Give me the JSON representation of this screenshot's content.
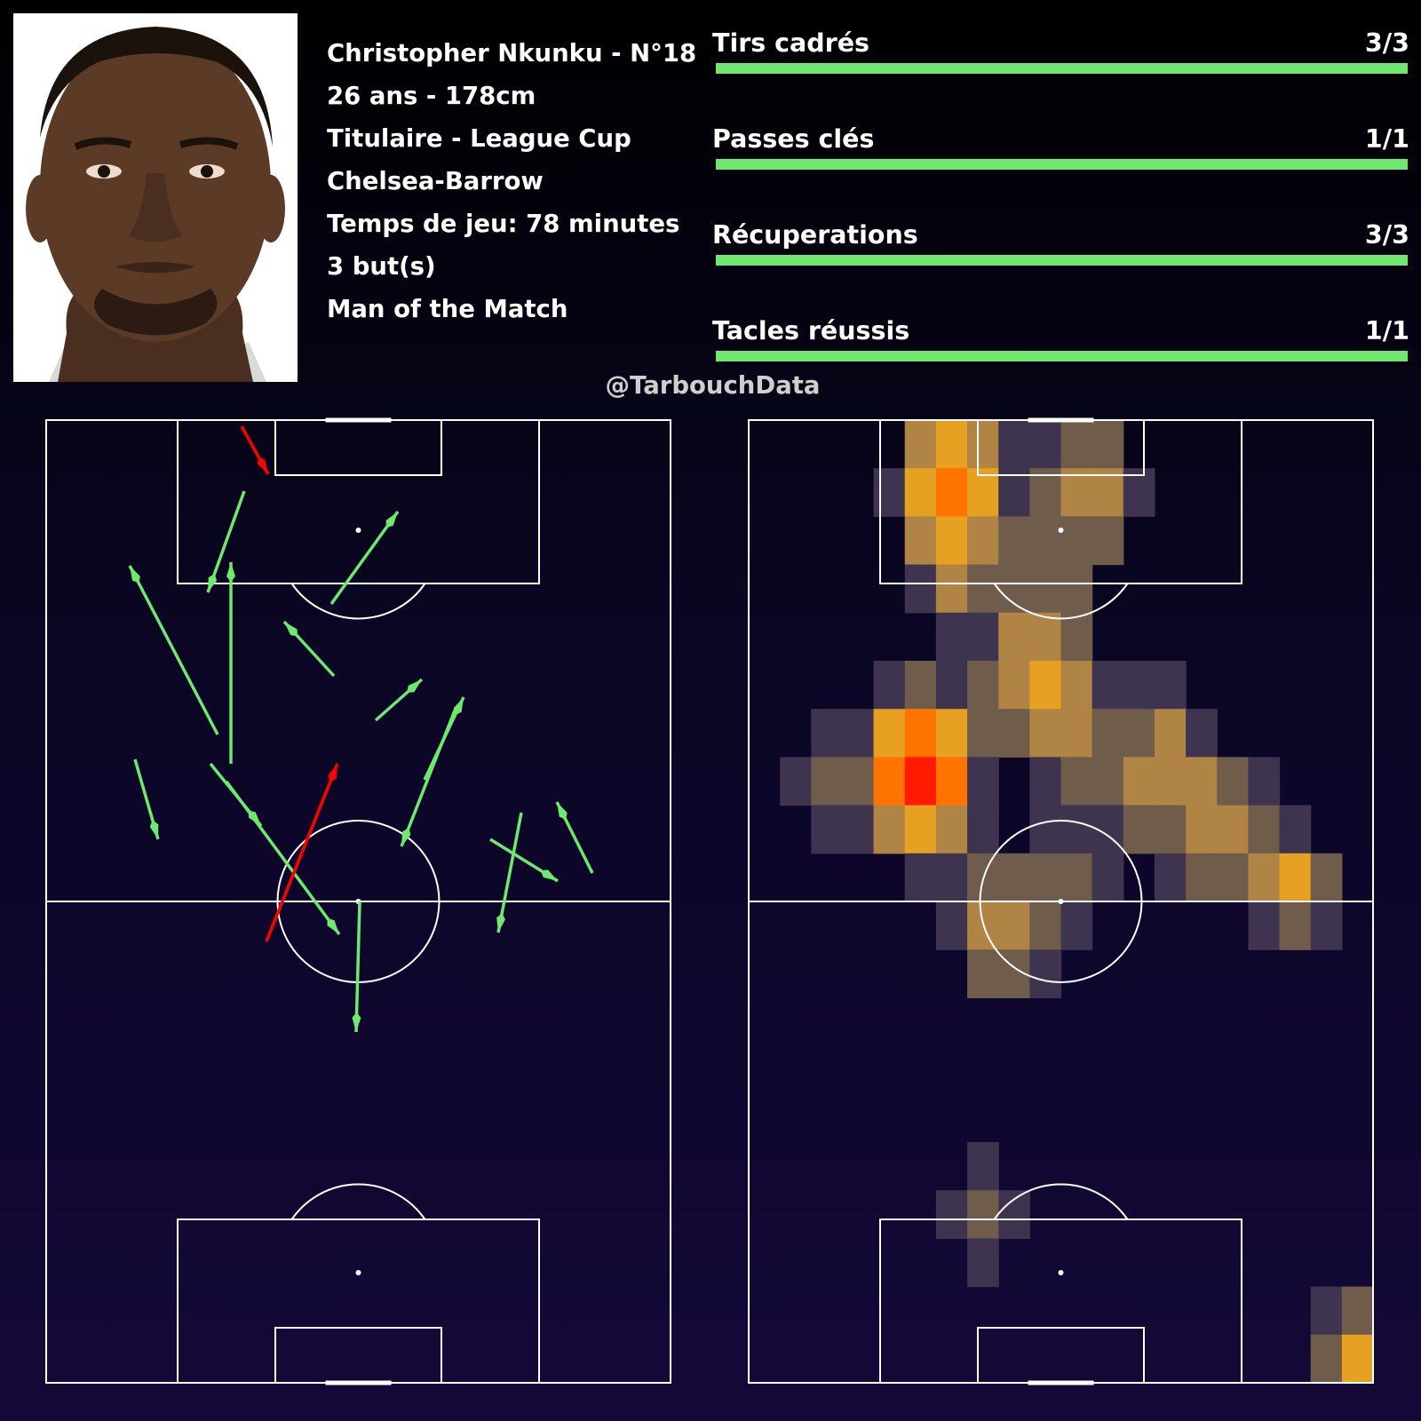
{
  "player": {
    "name_line": "Christopher Nkunku - N°18",
    "age_height": "26 ans - 178cm",
    "status": "Titulaire - League Cup",
    "match": "Chelsea-Barrow",
    "minutes": "Temps de jeu: 78 minutes",
    "goals": "3 but(s)",
    "award": "Man of the Match"
  },
  "stats": [
    {
      "label": "Tirs cadrés",
      "value": "3/3",
      "ratio": 1.0
    },
    {
      "label": "Passes clés",
      "value": "1/1",
      "ratio": 1.0
    },
    {
      "label": "Récuperations",
      "value": "3/3",
      "ratio": 1.0
    },
    {
      "label": "Tacles réussis",
      "value": "1/1",
      "ratio": 1.0
    }
  ],
  "watermark": "@TarbouchData",
  "colors": {
    "bar": "#6ee86e",
    "pass_success": "#6ee86e",
    "pass_fail": "#ff0000",
    "pitch_lines": "#ffffff"
  },
  "icons": {
    "photo": "player-portrait"
  }
}
